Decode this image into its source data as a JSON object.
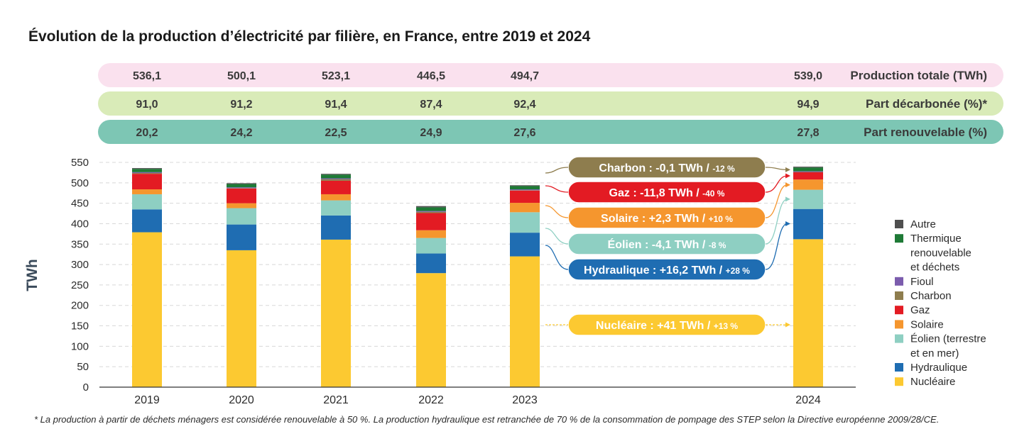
{
  "chart_data": {
    "type": "bar",
    "title": "Évolution de la production d’électricité par filière, en France, entre 2019 et 2024",
    "ylabel": "TWh",
    "ylim": [
      0,
      550
    ],
    "yticks": [
      0,
      50,
      100,
      150,
      200,
      250,
      300,
      350,
      400,
      450,
      500,
      550
    ],
    "grid": true,
    "legend_position": "right",
    "categories": [
      "2019",
      "2020",
      "2021",
      "2022",
      "2023",
      "2024"
    ],
    "series": [
      {
        "name": "Nucléaire",
        "color": "#FCC931",
        "values": [
          379,
          335,
          361,
          279,
          320,
          362
        ]
      },
      {
        "name": "Hydraulique",
        "color": "#1F6DB2",
        "values": [
          56,
          63,
          59,
          48,
          58,
          74
        ]
      },
      {
        "name": "Éolien (terrestre et en mer)",
        "color": "#8ECFC2",
        "values": [
          37,
          40,
          37,
          38,
          50,
          47
        ]
      },
      {
        "name": "Solaire",
        "color": "#F5962E",
        "values": [
          12,
          12,
          15,
          19,
          23,
          25
        ]
      },
      {
        "name": "Gaz",
        "color": "#E31B23",
        "values": [
          38,
          36,
          33,
          42,
          30,
          18
        ]
      },
      {
        "name": "Charbon",
        "color": "#8E7D4E",
        "values": [
          2,
          1,
          4,
          3,
          1,
          0.5
        ]
      },
      {
        "name": "Fioul",
        "color": "#7B5CAD",
        "values": [
          2,
          2,
          2,
          2,
          2,
          2
        ]
      },
      {
        "name": "Thermique renouvelable et déchets",
        "color": "#1E7A36",
        "values": [
          8,
          8,
          9,
          9,
          8,
          9
        ]
      },
      {
        "name": "Autre",
        "color": "#4F4F4F",
        "values": [
          2,
          2,
          2,
          3,
          2,
          2
        ]
      }
    ],
    "legend_labels": [
      {
        "color": "#4F4F4F",
        "lines": [
          "Autre"
        ]
      },
      {
        "color": "#1E7A36",
        "lines": [
          "Thermique",
          "renouvelable",
          "et déchets"
        ]
      },
      {
        "color": "#7B5CAD",
        "lines": [
          "Fioul"
        ]
      },
      {
        "color": "#8E7D4E",
        "lines": [
          "Charbon"
        ]
      },
      {
        "color": "#E31B23",
        "lines": [
          "Gaz"
        ]
      },
      {
        "color": "#F5962E",
        "lines": [
          "Solaire"
        ]
      },
      {
        "color": "#8ECFC2",
        "lines": [
          "Éolien (terrestre",
          "et en mer)"
        ]
      },
      {
        "color": "#1F6DB2",
        "lines": [
          "Hydraulique"
        ]
      },
      {
        "color": "#FCC931",
        "lines": [
          "Nucléaire"
        ]
      }
    ],
    "summary_rows": [
      {
        "label": "Production totale (TWh)",
        "bg": "#FAE1EE",
        "values": [
          "536,1",
          "500,1",
          "523,1",
          "446,5",
          "494,7",
          "539,0"
        ]
      },
      {
        "label": "Part décarbonée (%)*",
        "bg": "#D9EBB8",
        "values": [
          "91,0",
          "91,2",
          "91,4",
          "87,4",
          "92,4",
          "94,9"
        ]
      },
      {
        "label": "Part renouvelable (%)",
        "bg": "#7DC6B4",
        "values": [
          "20,2",
          "24,2",
          "22,5",
          "24,9",
          "27,6",
          "27,8"
        ]
      }
    ],
    "annotations": [
      {
        "main": "Charbon : -0,1 TWh / ",
        "small": "-12 %",
        "color": "#8E7D4E",
        "text_color": "#ffffff",
        "target_value": 532
      },
      {
        "main": "Gaz : -11,8 TWh / ",
        "small": "-40 %",
        "color": "#E31B23",
        "text_color": "#ffffff",
        "target_value": 517
      },
      {
        "main": "Solaire : +2,3 TWh / ",
        "small": "+10 %",
        "color": "#F5962E",
        "text_color": "#ffffff",
        "target_value": 495
      },
      {
        "main": "Éolien : -4,1 TWh / ",
        "small": "-8 %",
        "color": "#8ECFC2",
        "text_color": "#ffffff",
        "target_value": 460
      },
      {
        "main": "Hydraulique : +16,2 TWh / ",
        "small": "+28 %",
        "color": "#1F6DB2",
        "text_color": "#ffffff",
        "target_value": 400
      },
      {
        "main": "Nucléaire : +41 TWh / ",
        "small": "+13 %",
        "color": "#FCC931",
        "text_color": "#ffffff",
        "target_value": 155
      }
    ],
    "footnote": "* La production à partir de déchets ménagers est considérée renouvelable à 50 %. La production hydraulique est retranchée de 70 % de la consommation de pompage des STEP selon la Directive européenne 2009/28/CE."
  }
}
